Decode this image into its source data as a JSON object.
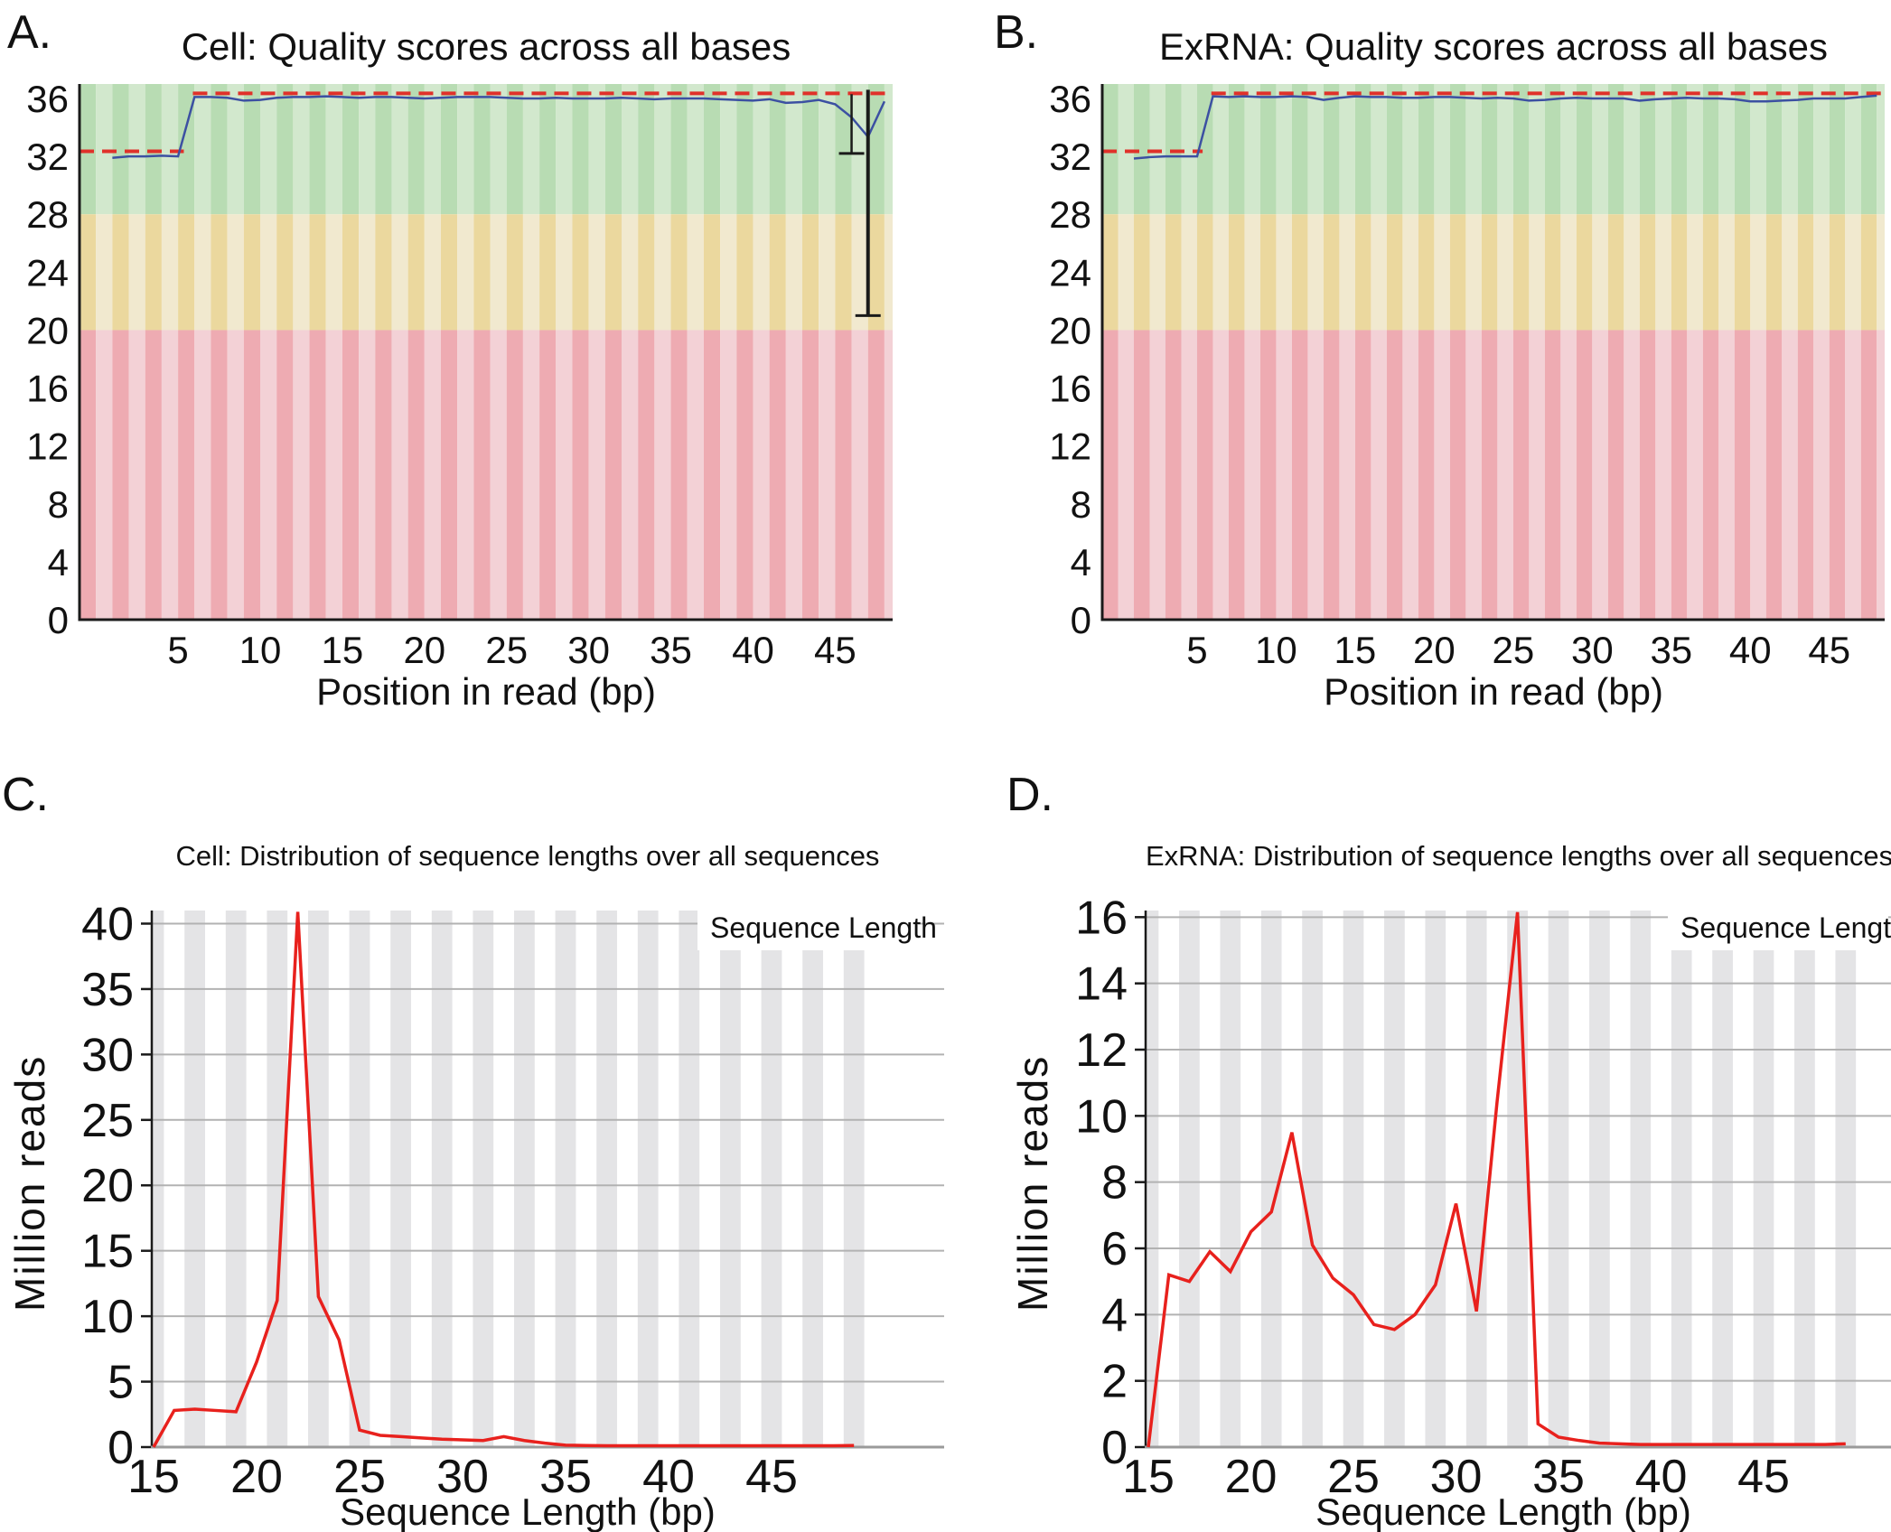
{
  "panels": [
    {
      "letter": "A.",
      "title": "Cell: Quality scores across all bases",
      "xlabel": "Position in read (bp)"
    },
    {
      "letter": "B.",
      "title": "ExRNA: Quality scores across all bases",
      "xlabel": "Position in read (bp)"
    },
    {
      "letter": "C.",
      "title": "Cell: Distribution of sequence lengths over all sequences",
      "xlabel": "Sequence Length (bp)",
      "ylabel": "Million reads",
      "legend": "Sequence Length"
    },
    {
      "letter": "D.",
      "title": "ExRNA: Distribution of sequence lengths over all sequences",
      "xlabel": "Sequence Length (bp)",
      "ylabel": "Million reads",
      "legend": "Sequence Length"
    }
  ],
  "colors": {
    "green_dark": "#b8dcb3",
    "green_light": "#d2e8cd",
    "yellow_dark": "#ebd89e",
    "yellow_light": "#f1e9cf",
    "red_dark": "#eeabb2",
    "red_light": "#f3d1d6",
    "mean_line": "#3c50a2",
    "median_line": "#e0312a",
    "length_line": "#e8211d",
    "stripe_gray": "#e4e4e6",
    "gridline": "#b2b2b2",
    "axis_dark": "#1a1a1a",
    "axis_gray": "#9a9a9a",
    "legend_text": "#e8211d"
  },
  "chart_data": [
    {
      "id": "A",
      "type": "line",
      "subtype": "fastqc-per-base-quality",
      "title": "Cell: Quality scores across all bases",
      "xlabel": "Position in read (bp)",
      "xlim": [
        -1,
        48.5
      ],
      "ylim": [
        0,
        37
      ],
      "yticks": [
        0,
        4,
        8,
        12,
        16,
        20,
        24,
        28,
        32,
        36
      ],
      "xticks": [
        5,
        10,
        15,
        20,
        25,
        30,
        35,
        40,
        45
      ],
      "bands": [
        {
          "name": "good",
          "from": 28,
          "to": 37
        },
        {
          "name": "ok",
          "from": 20,
          "to": 28
        },
        {
          "name": "poor",
          "from": 0,
          "to": 20
        }
      ],
      "mean_series": {
        "name": "mean quality",
        "x_start": 1,
        "values": [
          31.9,
          32.0,
          32.0,
          32.05,
          32.0,
          36.1,
          36.1,
          36.05,
          35.85,
          35.9,
          36.05,
          36.1,
          36.1,
          36.15,
          36.1,
          36.05,
          36.1,
          36.1,
          36.05,
          36.0,
          36.05,
          36.1,
          36.1,
          36.1,
          36.05,
          36.0,
          36.0,
          36.05,
          36.0,
          36.0,
          36.0,
          36.05,
          36.0,
          35.95,
          36.0,
          36.0,
          36.0,
          35.95,
          35.9,
          35.85,
          35.95,
          35.7,
          35.75,
          35.9,
          35.6,
          34.7,
          33.35,
          35.8
        ]
      },
      "median_segments": [
        {
          "x0": -1,
          "x1": 5.35,
          "y": 32.35
        },
        {
          "x0": 5.9,
          "x1": 48.5,
          "y": 36.35
        }
      ],
      "error_bars": [
        {
          "x": 46,
          "y_low": 32.2,
          "y_high": 36.3,
          "width": 2.5
        },
        {
          "x": 47,
          "y_low": 21.0,
          "y_high": 36.6,
          "width": 4
        }
      ]
    },
    {
      "id": "B",
      "type": "line",
      "subtype": "fastqc-per-base-quality",
      "title": "ExRNA: Quality scores across all bases",
      "xlabel": "Position in read (bp)",
      "xlim": [
        -1,
        48.5
      ],
      "ylim": [
        0,
        37
      ],
      "yticks": [
        0,
        4,
        8,
        12,
        16,
        20,
        24,
        28,
        32,
        36
      ],
      "xticks": [
        5,
        10,
        15,
        20,
        25,
        30,
        35,
        40,
        45
      ],
      "bands": [
        {
          "name": "good",
          "from": 28,
          "to": 37
        },
        {
          "name": "ok",
          "from": 20,
          "to": 28
        },
        {
          "name": "poor",
          "from": 0,
          "to": 20
        }
      ],
      "mean_series": {
        "name": "mean quality",
        "x_start": 1,
        "values": [
          31.85,
          31.95,
          32.0,
          32.0,
          32.0,
          36.15,
          36.1,
          36.15,
          36.1,
          36.1,
          36.15,
          36.1,
          35.9,
          36.05,
          36.15,
          36.1,
          36.1,
          36.05,
          36.05,
          36.1,
          36.1,
          36.05,
          36.0,
          36.05,
          36.0,
          35.85,
          35.9,
          36.0,
          36.05,
          36.0,
          36.0,
          36.0,
          35.85,
          35.95,
          36.0,
          36.05,
          36.0,
          36.0,
          35.95,
          35.8,
          35.8,
          35.85,
          35.9,
          36.0,
          36.0,
          36.0,
          36.1,
          36.2
        ]
      },
      "median_segments": [
        {
          "x0": -1,
          "x1": 5.35,
          "y": 32.35
        },
        {
          "x0": 5.9,
          "x1": 48.5,
          "y": 36.35
        }
      ],
      "error_bars": []
    },
    {
      "id": "C",
      "type": "line",
      "subtype": "fastqc-sequence-length-distribution",
      "title": "Cell: Distribution of sequence lengths over all sequences",
      "xlabel": "Sequence Length (bp)",
      "ylabel": "Million reads",
      "legend": {
        "label": "Sequence Length",
        "position": "top-right"
      },
      "xlim": [
        14.9,
        51.4
      ],
      "ylim": [
        0,
        41
      ],
      "yticks": [
        0,
        5,
        10,
        15,
        20,
        25,
        30,
        35,
        40
      ],
      "xticks": [
        15,
        20,
        25,
        30,
        35,
        40,
        45
      ],
      "series": [
        {
          "name": "Sequence Length",
          "x_start": 15,
          "values": [
            0,
            2.8,
            2.9,
            2.8,
            2.7,
            6.5,
            11.2,
            40.9,
            11.5,
            8.2,
            1.3,
            0.9,
            0.8,
            0.7,
            0.6,
            0.55,
            0.5,
            0.8,
            0.5,
            0.3,
            0.15,
            0.12,
            0.1,
            0.1,
            0.1,
            0.1,
            0.1,
            0.1,
            0.1,
            0.1,
            0.1,
            0.1,
            0.1,
            0.1,
            0.12
          ]
        }
      ]
    },
    {
      "id": "D",
      "type": "line",
      "subtype": "fastqc-sequence-length-distribution",
      "title": "ExRNA: Distribution of sequence lengths over all sequences",
      "xlabel": "Sequence Length (bp)",
      "ylabel": "Million reads",
      "legend": {
        "label": "Sequence Length",
        "position": "top-right"
      },
      "xlim": [
        14.9,
        51.4
      ],
      "ylim": [
        0,
        16.2
      ],
      "yticks": [
        0,
        2,
        4,
        6,
        8,
        10,
        12,
        14,
        16
      ],
      "xticks": [
        15,
        20,
        25,
        30,
        35,
        40,
        45
      ],
      "series": [
        {
          "name": "Sequence Length",
          "x_start": 15,
          "values": [
            0,
            5.2,
            5.0,
            5.9,
            5.3,
            6.5,
            7.1,
            9.5,
            6.1,
            5.1,
            4.6,
            3.7,
            3.55,
            4.0,
            4.9,
            7.35,
            4.1,
            10.4,
            16.15,
            0.7,
            0.3,
            0.2,
            0.12,
            0.1,
            0.08,
            0.08,
            0.08,
            0.08,
            0.08,
            0.08,
            0.08,
            0.08,
            0.08,
            0.08,
            0.1
          ]
        }
      ]
    }
  ]
}
